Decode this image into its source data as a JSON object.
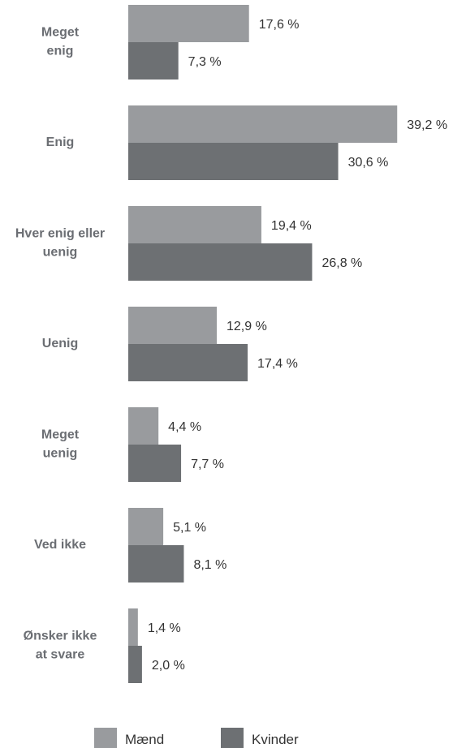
{
  "chart_data": {
    "type": "bar",
    "orientation": "horizontal",
    "categories": [
      [
        "Meget",
        "enig"
      ],
      [
        "Enig"
      ],
      [
        "Hver enig eller",
        "uenig"
      ],
      [
        "Uenig"
      ],
      [
        "Meget",
        "uenig"
      ],
      [
        "Ved ikke"
      ],
      [
        "Ønsker ikke",
        "at svare"
      ]
    ],
    "series": [
      {
        "name": "Mænd",
        "color": "#999b9e",
        "values": [
          17.6,
          39.2,
          19.4,
          12.9,
          4.4,
          5.1,
          1.4
        ],
        "labels": [
          "17,6 %",
          "39,2 %",
          "19,4 %",
          "12,9 %",
          "4,4 %",
          "5,1 %",
          "1,4  %"
        ]
      },
      {
        "name": "Kvinder",
        "color": "#6d7073",
        "values": [
          7.3,
          30.6,
          26.8,
          17.4,
          7.7,
          8.1,
          2.0
        ],
        "labels": [
          "7,3 %",
          "30,6 %",
          "26,8 %",
          "17,4 %",
          "7,7 %",
          "8,1 %",
          "2,0 %"
        ]
      }
    ],
    "legend_position": "bottom",
    "grid": false
  }
}
